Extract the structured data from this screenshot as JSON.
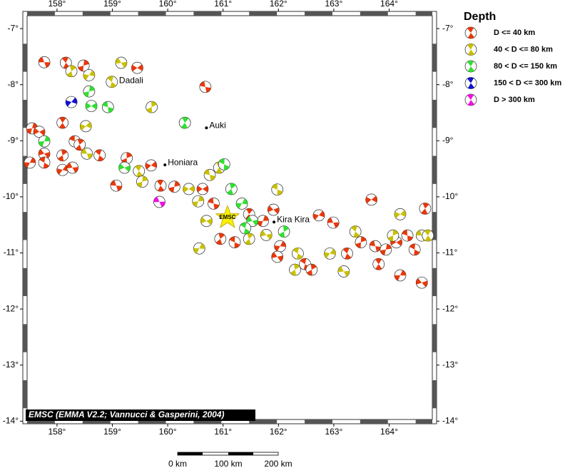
{
  "map": {
    "lon_range": [
      157.46,
      164.78
    ],
    "lat_range": [
      -6.77,
      -13.97
    ],
    "lon_ticks": [
      {
        "value": 158,
        "label": "158°"
      },
      {
        "value": 159,
        "label": "159°"
      },
      {
        "value": 160,
        "label": "160°"
      },
      {
        "value": 161,
        "label": "161°"
      },
      {
        "value": 162,
        "label": "162°"
      },
      {
        "value": 163,
        "label": "163°"
      },
      {
        "value": 164,
        "label": "164°"
      }
    ],
    "lat_ticks": [
      {
        "value": -7,
        "label": "-7°"
      },
      {
        "value": -8,
        "label": "-8°"
      },
      {
        "value": -9,
        "label": "-9°"
      },
      {
        "value": -10,
        "label": "-10°"
      },
      {
        "value": -11,
        "label": "-11°"
      },
      {
        "value": -12,
        "label": "-12°"
      },
      {
        "value": -13,
        "label": "-13°"
      },
      {
        "value": -14,
        "label": "-14°"
      }
    ],
    "places": [
      {
        "name": "Dadali",
        "lon": 159.07,
        "lat": -7.97
      },
      {
        "name": "Auki",
        "lon": 160.7,
        "lat": -8.77
      },
      {
        "name": "Honiara",
        "lon": 159.95,
        "lat": -9.43
      },
      {
        "name": "Kira Kira",
        "lon": 161.92,
        "lat": -10.45
      }
    ],
    "epicenter": {
      "label": "EMSC",
      "lon": 161.08,
      "lat": -10.37
    },
    "credit": "EMSC (EMMA V2.2; Vannucci & Gasperini, 2004)",
    "scale_labels": [
      "0 km",
      "100 km",
      "200 km"
    ]
  },
  "legend": {
    "title": "Depth",
    "classes": [
      {
        "label": "D <= 40 km",
        "color": "#e8380c",
        "events": [
          [
            157.77,
            -7.6
          ],
          [
            158.16,
            -7.61
          ],
          [
            158.48,
            -7.66
          ],
          [
            159.45,
            -7.7
          ],
          [
            160.68,
            -8.04
          ],
          [
            158.1,
            -8.68
          ],
          [
            157.55,
            -8.78
          ],
          [
            157.68,
            -8.84
          ],
          [
            158.32,
            -9.01
          ],
          [
            158.41,
            -9.07
          ],
          [
            157.51,
            -9.39
          ],
          [
            157.77,
            -9.23
          ],
          [
            157.77,
            -9.39
          ],
          [
            158.1,
            -9.26
          ],
          [
            158.1,
            -9.52
          ],
          [
            158.28,
            -9.48
          ],
          [
            158.77,
            -9.26
          ],
          [
            159.26,
            -9.31
          ],
          [
            159.7,
            -9.44
          ],
          [
            159.07,
            -9.8
          ],
          [
            159.87,
            -9.8
          ],
          [
            160.12,
            -9.82
          ],
          [
            160.63,
            -9.86
          ],
          [
            160.83,
            -10.12
          ],
          [
            161.47,
            -10.31
          ],
          [
            161.72,
            -10.43
          ],
          [
            161.91,
            -10.23
          ],
          [
            161.21,
            -10.81
          ],
          [
            160.95,
            -10.75
          ],
          [
            162.03,
            -10.88
          ],
          [
            161.98,
            -11.07
          ],
          [
            162.48,
            -11.2
          ],
          [
            162.6,
            -11.3
          ],
          [
            162.73,
            -10.33
          ],
          [
            162.99,
            -10.46
          ],
          [
            163.24,
            -11.01
          ],
          [
            163.49,
            -10.81
          ],
          [
            163.68,
            -10.05
          ],
          [
            163.75,
            -10.88
          ],
          [
            163.81,
            -11.2
          ],
          [
            163.94,
            -10.94
          ],
          [
            164.13,
            -10.81
          ],
          [
            164.33,
            -10.69
          ],
          [
            164.65,
            -10.21
          ],
          [
            164.2,
            -11.4
          ],
          [
            164.59,
            -11.53
          ],
          [
            164.46,
            -10.94
          ]
        ]
      },
      {
        "label": "40 < D <= 80 km",
        "color": "#c8c000",
        "events": [
          [
            158.26,
            -7.76
          ],
          [
            158.58,
            -7.83
          ],
          [
            159.16,
            -7.61
          ],
          [
            158.99,
            -7.95
          ],
          [
            159.71,
            -8.4
          ],
          [
            158.52,
            -8.74
          ],
          [
            158.54,
            -9.23
          ],
          [
            159.48,
            -9.54
          ],
          [
            159.54,
            -9.73
          ],
          [
            160.38,
            -9.86
          ],
          [
            160.76,
            -9.61
          ],
          [
            160.93,
            -9.48
          ],
          [
            160.55,
            -10.08
          ],
          [
            160.7,
            -10.43
          ],
          [
            161.98,
            -9.87
          ],
          [
            161.47,
            -10.75
          ],
          [
            160.57,
            -10.92
          ],
          [
            161.78,
            -10.68
          ],
          [
            162.35,
            -11.01
          ],
          [
            162.3,
            -11.3
          ],
          [
            162.93,
            -11.01
          ],
          [
            163.18,
            -11.33
          ],
          [
            163.39,
            -10.62
          ],
          [
            164.07,
            -10.69
          ],
          [
            164.2,
            -10.31
          ],
          [
            164.59,
            -10.69
          ],
          [
            164.7,
            -10.69
          ]
        ]
      },
      {
        "label": "80 < D <= 150 km",
        "color": "#30e030",
        "events": [
          [
            158.58,
            -8.12
          ],
          [
            158.62,
            -8.38
          ],
          [
            158.92,
            -8.4
          ],
          [
            160.31,
            -8.68
          ],
          [
            157.77,
            -9.01
          ],
          [
            159.22,
            -9.48
          ],
          [
            161.02,
            -9.42
          ],
          [
            161.15,
            -9.86
          ],
          [
            161.34,
            -10.12
          ],
          [
            161.53,
            -10.43
          ],
          [
            161.4,
            -10.56
          ],
          [
            162.1,
            -10.62
          ]
        ]
      },
      {
        "label": "150 < D <= 300 km",
        "color": "#1010d0",
        "events": [
          [
            158.26,
            -8.31
          ]
        ]
      },
      {
        "label": "D > 300 km",
        "color": "#f010e0",
        "events": [
          [
            159.85,
            -10.09
          ]
        ]
      }
    ]
  }
}
